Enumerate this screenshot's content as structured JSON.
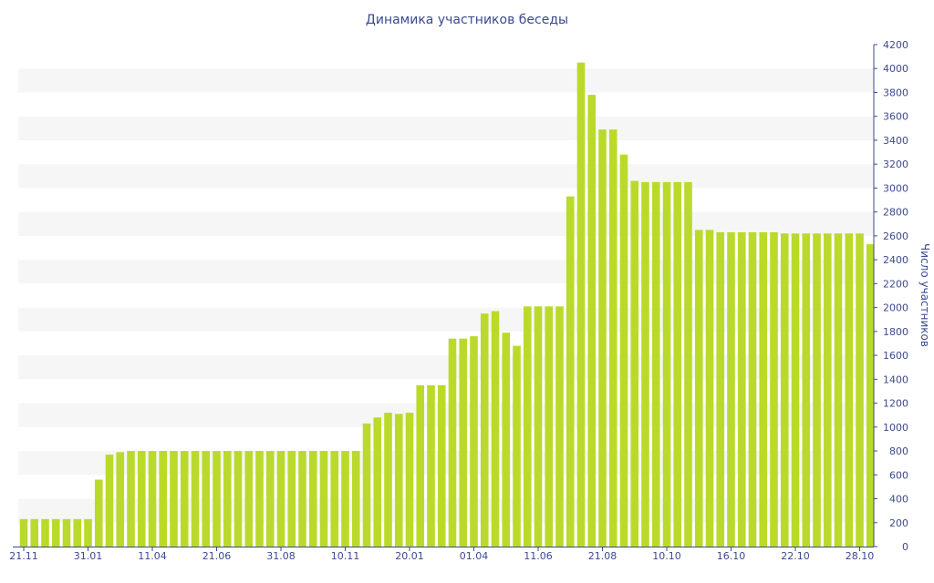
{
  "colors": {
    "bar": "#bada2b",
    "band": "#f6f6f6",
    "axis": "#3b4a8f",
    "text": "#3b4a8f"
  },
  "chart_data": {
    "type": "bar",
    "title": "Динамика участников беседы",
    "xlabel": "",
    "ylabel": "Число участников",
    "ylim": [
      0,
      4200
    ],
    "y_ticks": [
      0,
      200,
      400,
      600,
      800,
      1000,
      1200,
      1400,
      1600,
      1800,
      2000,
      2200,
      2400,
      2600,
      2800,
      3000,
      3200,
      3400,
      3600,
      3800,
      4000,
      4200
    ],
    "y_axis_position": "right",
    "grid": "alternating horizontal bands",
    "x_tick_labels": [
      {
        "index": 0,
        "label": "21.11"
      },
      {
        "index": 6,
        "label": "31.01"
      },
      {
        "index": 12,
        "label": "11.04"
      },
      {
        "index": 18,
        "label": "21.06"
      },
      {
        "index": 24,
        "label": "31.08"
      },
      {
        "index": 30,
        "label": "10.11"
      },
      {
        "index": 36,
        "label": "20.01"
      },
      {
        "index": 42,
        "label": "01.04"
      },
      {
        "index": 48,
        "label": "11.06"
      },
      {
        "index": 54,
        "label": "21.08"
      },
      {
        "index": 60,
        "label": "10.10"
      },
      {
        "index": 66,
        "label": "16.10"
      },
      {
        "index": 72,
        "label": "22.10"
      },
      {
        "index": 78,
        "label": "28.10"
      }
    ],
    "values": [
      230,
      230,
      230,
      230,
      230,
      230,
      230,
      560,
      770,
      790,
      800,
      800,
      800,
      800,
      800,
      800,
      800,
      800,
      800,
      800,
      800,
      800,
      800,
      800,
      800,
      800,
      800,
      800,
      800,
      800,
      800,
      800,
      1030,
      1080,
      1120,
      1110,
      1120,
      1350,
      1350,
      1350,
      1740,
      1740,
      1760,
      1950,
      1970,
      1790,
      1680,
      2010,
      2010,
      2010,
      2010,
      2930,
      4050,
      3780,
      3490,
      3490,
      3280,
      3060,
      3050,
      3050,
      3050,
      3050,
      3050,
      2650,
      2650,
      2630,
      2630,
      2630,
      2630,
      2630,
      2630,
      2620,
      2620,
      2620,
      2620,
      2620,
      2620,
      2620,
      2620,
      2530
    ]
  }
}
